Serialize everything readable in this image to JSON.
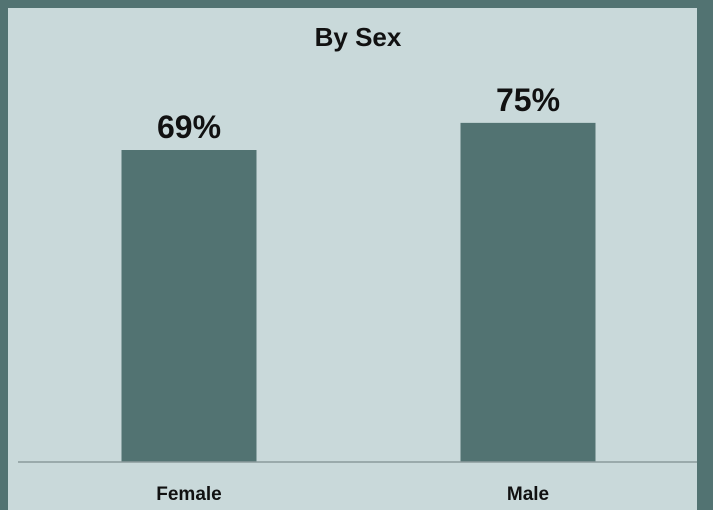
{
  "chart_data": {
    "type": "bar",
    "title": "By Sex",
    "categories": [
      "Female",
      "Male"
    ],
    "values": [
      69,
      75
    ],
    "value_labels": [
      "69%",
      "75%"
    ],
    "xlabel": "",
    "ylabel": "",
    "ylim": [
      0,
      100
    ],
    "grid": false,
    "legend": "none",
    "colors": {
      "bar": "#527372",
      "background": "#c9d9da",
      "frame": "#527372",
      "axis": "#8a9a9b",
      "text": "#111111"
    }
  }
}
